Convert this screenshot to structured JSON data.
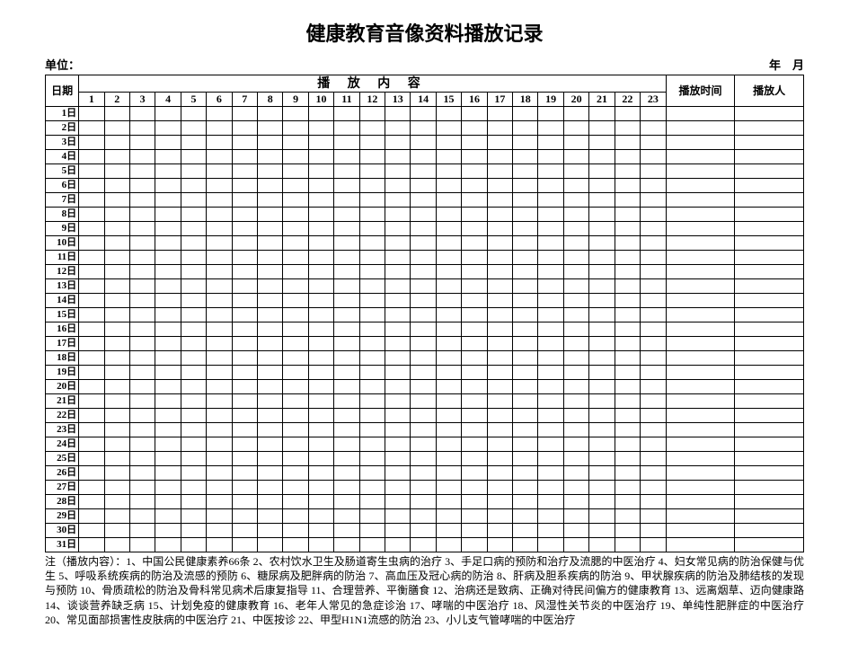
{
  "title": "健康教育音像资料播放记录",
  "header": {
    "unit_label": "单位：",
    "date_label": "年　月"
  },
  "table": {
    "date_header": "日期",
    "content_header": "播 放 内 容",
    "time_header": "播放时间",
    "person_header": "播放人",
    "content_cols": [
      "1",
      "2",
      "3",
      "4",
      "5",
      "6",
      "7",
      "8",
      "9",
      "10",
      "11",
      "12",
      "13",
      "14",
      "15",
      "16",
      "17",
      "18",
      "19",
      "20",
      "21",
      "22",
      "23"
    ],
    "day_rows": [
      "1日",
      "2日",
      "3日",
      "4日",
      "5日",
      "6日",
      "7日",
      "8日",
      "9日",
      "10日",
      "11日",
      "12日",
      "13日",
      "14日",
      "15日",
      "16日",
      "17日",
      "18日",
      "19日",
      "20日",
      "21日",
      "22日",
      "23日",
      "24日",
      "25日",
      "26日",
      "27日",
      "28日",
      "29日",
      "30日",
      "31日"
    ]
  },
  "footnote": "注（播放内容）：1、中国公民健康素养66条 2、农村饮水卫生及肠道寄生虫病的治疗 3、手足口病的预防和治疗及流腮的中医治疗 4、妇女常见病的防治保健与优生 5、呼吸系统疾病的防治及流感的预防 6、糖尿病及肥胖病的防治 7、高血压及冠心病的防治 8、肝病及胆系疾病的防治 9、甲状腺疾病的防治及肺结核的发现与预防 10、骨质疏松的防治及骨科常见病术后康复指导 11、合理营养、平衡膳食 12、治病还是致病、正确对待民间偏方的健康教育 13、远离烟草、迈向健康路 14、谈谈营养缺乏病 15、计划免疫的健康教育 16、老年人常见的急症诊治 17、哮喘的中医治疗 18、风湿性关节炎的中医治疗 19、单纯性肥胖症的中医治疗 20、常见面部损害性皮肤病的中医治疗 21、中医按诊 22、甲型H1N1流感的防治 23、小儿支气管哮喘的中医治疗"
}
